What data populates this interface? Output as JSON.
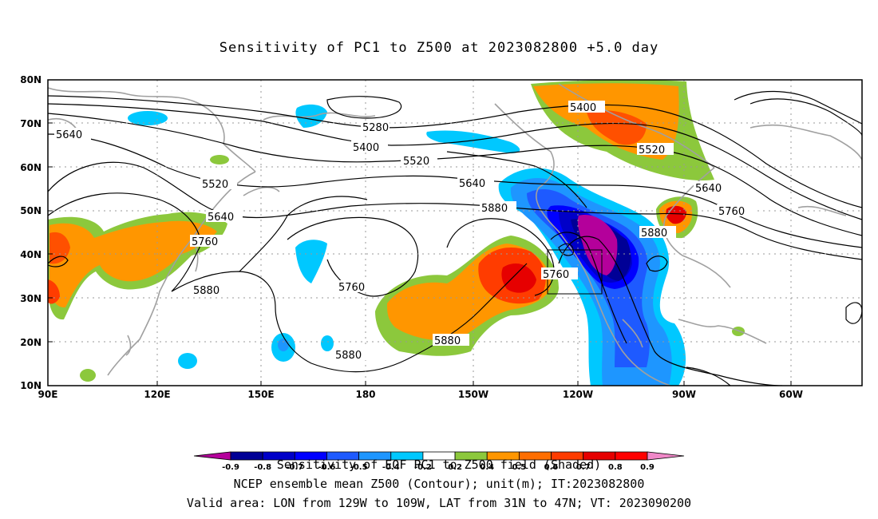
{
  "title": "Sensitivity of PC1 to Z500 at 2023082800 +5.0 day",
  "axes": {
    "lon_ticks": [
      "90E",
      "120E",
      "150E",
      "180",
      "150W",
      "120W",
      "90W",
      "60W"
    ],
    "lat_ticks": [
      "80N",
      "70N",
      "60N",
      "50N",
      "40N",
      "30N",
      "20N",
      "10N"
    ]
  },
  "contour_labels": [
    "5280",
    "5400",
    "5520",
    "5640",
    "5760",
    "5880"
  ],
  "colorbar": {
    "labels": [
      "-0.9",
      "-0.8",
      "-0.7",
      "-0.6",
      "-0.5",
      "-0.4",
      "-0.2",
      "0.2",
      "0.4",
      "0.5",
      "0.6",
      "0.7",
      "0.8",
      "0.9"
    ],
    "colors": [
      "#b4009b",
      "#000096",
      "#0000c8",
      "#0000ff",
      "#1e5aff",
      "#1e96ff",
      "#00c8ff",
      "#ffffff",
      "#8cc83c",
      "#ff9600",
      "#ff6e00",
      "#ff3c00",
      "#e60000",
      "#ff0000",
      "#f088c8"
    ]
  },
  "captions": {
    "line1": "Sensitivity of EOF PC1 to Z500 field (Shaded)",
    "line2": "NCEP ensemble mean Z500 (Contour); unit(m); IT:2023082800",
    "line3": "Valid area: LON from 129W to 109W, LAT from 31N to 47N; VT: 2023090200"
  }
}
